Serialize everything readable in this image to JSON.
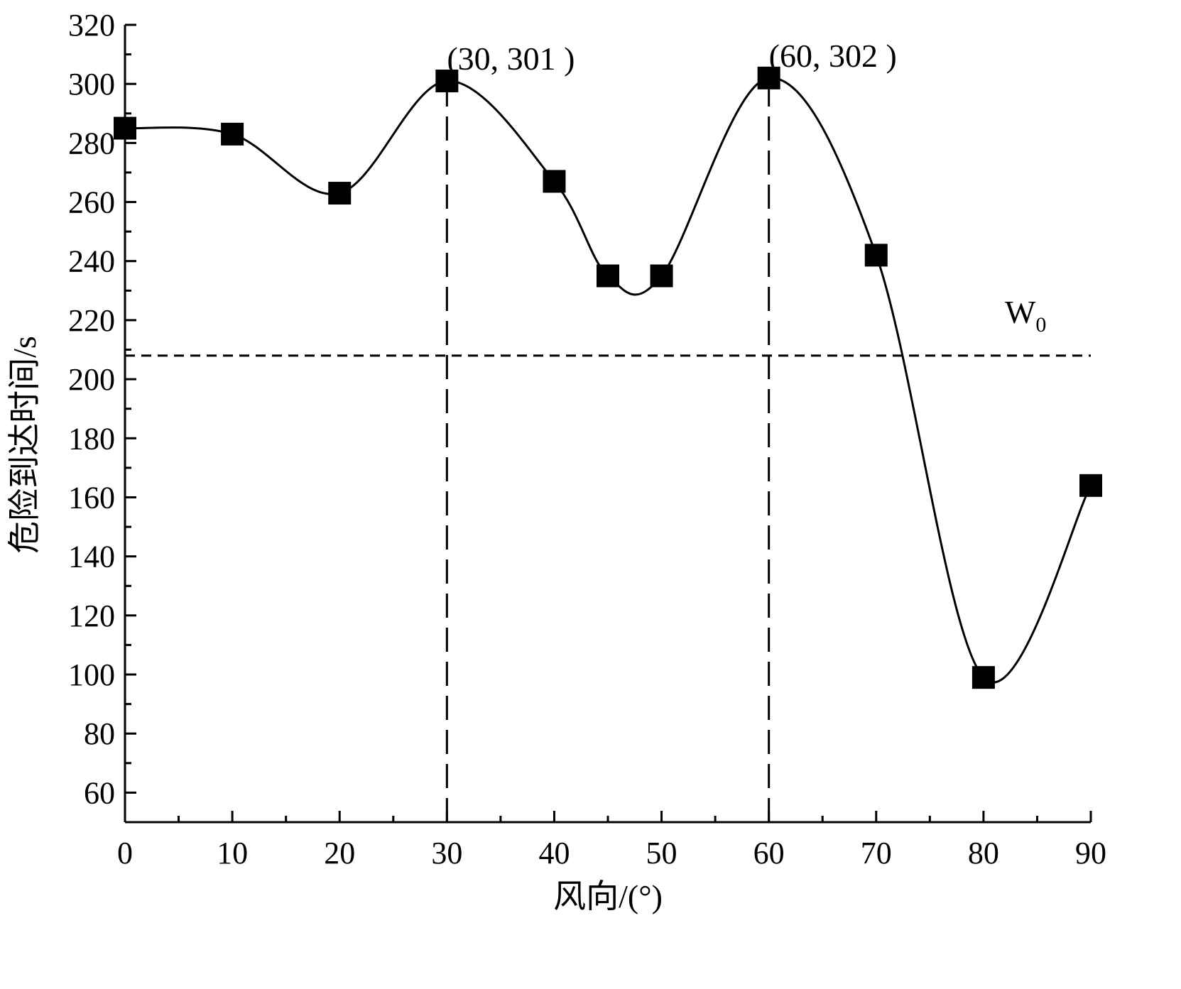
{
  "chart_data": {
    "type": "line",
    "title": "",
    "xlabel": "风向/(°)",
    "ylabel": "危险到达时间/s",
    "xlim": [
      0,
      90
    ],
    "ylim": [
      50,
      320
    ],
    "x_ticks": [
      "0",
      "10",
      "20",
      "30",
      "40",
      "50",
      "60",
      "70",
      "80",
      "90"
    ],
    "y_ticks": [
      "60",
      "80",
      "100",
      "120",
      "140",
      "160",
      "180",
      "200",
      "220",
      "240",
      "260",
      "280",
      "300",
      "320"
    ],
    "grid": false,
    "series": [
      {
        "x": [
          0,
          10,
          20,
          30,
          40,
          45,
          50,
          60,
          70,
          80,
          90
        ],
        "y": [
          285,
          283,
          263,
          301,
          267,
          235,
          235,
          302,
          242,
          99,
          164
        ],
        "marker": "square",
        "line": "smooth",
        "color": "#000000"
      }
    ],
    "reference_lines": [
      {
        "orientation": "horizontal",
        "y": 208,
        "style": "short-dash"
      },
      {
        "orientation": "vertical",
        "x": 30,
        "style": "long-dash"
      },
      {
        "orientation": "vertical",
        "x": 60,
        "style": "long-dash"
      }
    ],
    "annotations": [
      {
        "text": "(30, 301 )",
        "x": 30,
        "y": 301
      },
      {
        "text": "(60, 302 )",
        "x": 60,
        "y": 302
      }
    ],
    "w_label": {
      "main": "W",
      "sub": "0"
    }
  }
}
